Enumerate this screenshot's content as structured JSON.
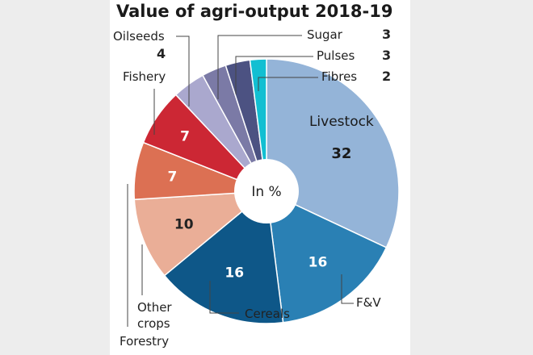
{
  "chart_data": {
    "type": "pie",
    "style": "donut",
    "title": "Value of agri-output 2018-19",
    "center_label": "In %",
    "slices": [
      {
        "label": "Livestock",
        "value": 32,
        "color": "#94b4d8"
      },
      {
        "label": "F&V",
        "value": 16,
        "color": "#2a80b4"
      },
      {
        "label": "Cereals",
        "value": 16,
        "color": "#0e5788"
      },
      {
        "label": "Other crops",
        "value": 10,
        "color": "#eaae97"
      },
      {
        "label": "Forestry",
        "value": 7,
        "color": "#dc7053"
      },
      {
        "label": "Fishery",
        "value": 7,
        "color": "#cc2734"
      },
      {
        "label": "Oilseeds",
        "value": 4,
        "color": "#aaa8ce"
      },
      {
        "label": "Sugar",
        "value": 3,
        "color": "#7b7aa6"
      },
      {
        "label": "Pulses",
        "value": 3,
        "color": "#4c5282"
      },
      {
        "label": "Fibres",
        "value": 2,
        "color": "#12bfd2"
      }
    ]
  }
}
